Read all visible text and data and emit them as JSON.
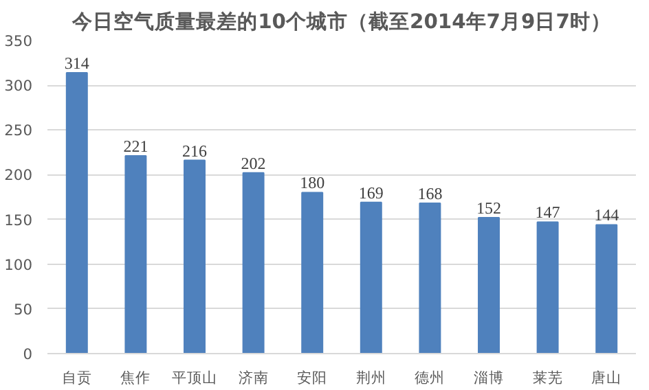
{
  "chart_data": {
    "type": "bar",
    "title": "今日空气质量最差的10个城市（截至2014年7月9日7时）",
    "categories": [
      "自贡",
      "焦作",
      "平顶山",
      "济南",
      "安阳",
      "荆州",
      "德州",
      "淄博",
      "莱芜",
      "唐山"
    ],
    "values": [
      314,
      221,
      216,
      202,
      180,
      169,
      168,
      152,
      147,
      144
    ],
    "color": "#4f81bd",
    "ylim": [
      0,
      350
    ],
    "yticks": [
      0,
      50,
      100,
      150,
      200,
      250,
      300,
      350
    ],
    "grid": "y",
    "data_labels": true
  }
}
